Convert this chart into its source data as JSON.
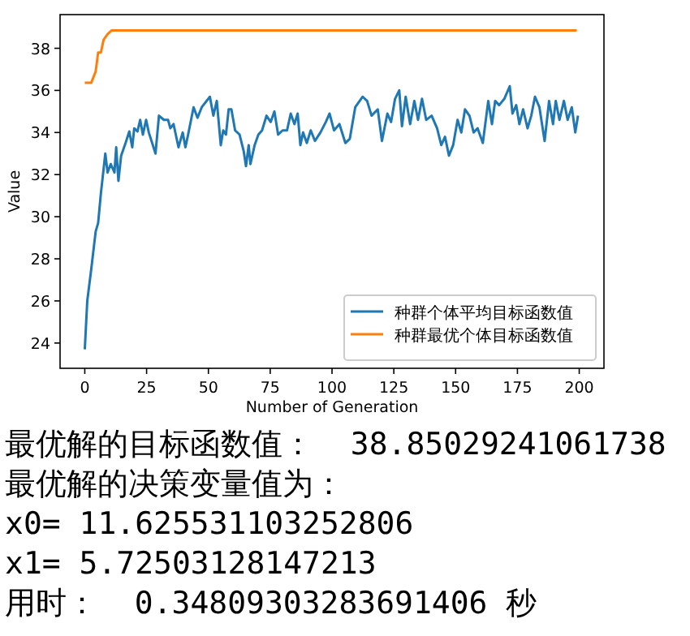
{
  "chart_data": {
    "type": "line",
    "xlabel": "Number of Generation",
    "ylabel": "Value",
    "xlim": [
      -10,
      210
    ],
    "ylim": [
      22.8,
      39.6
    ],
    "xticks": [
      0,
      25,
      50,
      75,
      100,
      125,
      150,
      175,
      200
    ],
    "yticks": [
      24,
      26,
      28,
      30,
      32,
      34,
      36,
      38
    ],
    "grid": false,
    "legend": "bottom right",
    "marker": "none",
    "line_style": "solid",
    "series": [
      {
        "name": "种群个体平均目标函数值",
        "color": "#1f77b4",
        "x": [
          0,
          1,
          2.6,
          4.4,
          5.4,
          6.5,
          8.3,
          9.2,
          10.5,
          12,
          12.7,
          13.6,
          14.7,
          16.5,
          18,
          19.2,
          20,
          21.3,
          22.4,
          23.5,
          24.8,
          25.9,
          28.6,
          30,
          32,
          33.7,
          34.6,
          35.9,
          37.9,
          39.6,
          40.7,
          41.8,
          44,
          45.6,
          47.3,
          50.6,
          52,
          53.4,
          55,
          56,
          57.1,
          58.2,
          59.3,
          60.8,
          62.6,
          64.3,
          65.2,
          66.3,
          67,
          68.7,
          70.2,
          71.7,
          73.5,
          75.2,
          76.7,
          78.2,
          80,
          81.8,
          83.3,
          84.8,
          86.1,
          87.2,
          88.3,
          89.8,
          91.4,
          93.1,
          95.3,
          97.5,
          99,
          100.8,
          103,
          105.4,
          107.2,
          109.4,
          112.4,
          114.2,
          116,
          118.5,
          120.2,
          122.4,
          123.9,
          125.5,
          127.2,
          128.3,
          129.8,
          131.6,
          133.3,
          134.8,
          136.4,
          138.1,
          140.3,
          142.5,
          144.2,
          145.7,
          147.3,
          149,
          150.8,
          152.3,
          153.8,
          155.6,
          157.3,
          158.9,
          161,
          163.2,
          164.7,
          166,
          167.6,
          169.7,
          171.9,
          173,
          174.5,
          175.8,
          177.3,
          179.1,
          180.6,
          182.1,
          183.9,
          186,
          187.8,
          189.4,
          190.5,
          192,
          193.8,
          195.3,
          197,
          198.4,
          199.5
        ],
        "values": [
          23.7,
          26.0,
          27.5,
          29.3,
          29.7,
          31.1,
          33.0,
          32.1,
          32.5,
          32.1,
          33.3,
          31.7,
          32.9,
          33.5,
          34.05,
          33.3,
          34.2,
          34.05,
          34.6,
          33.9,
          34.6,
          34.0,
          33.0,
          34.8,
          34.6,
          34.6,
          34.2,
          34.4,
          33.3,
          34.0,
          33.3,
          33.9,
          35.2,
          34.7,
          35.2,
          35.7,
          34.8,
          35.5,
          33.4,
          34.1,
          33.9,
          35.1,
          35.1,
          34.1,
          33.9,
          33.1,
          32.4,
          33.4,
          32.5,
          33.4,
          33.9,
          34.1,
          34.8,
          34.5,
          35.0,
          33.9,
          34.1,
          34.1,
          34.9,
          34.4,
          34.9,
          33.4,
          34.0,
          33.5,
          34.1,
          33.6,
          34.0,
          34.5,
          34.9,
          34.1,
          34.4,
          33.5,
          33.7,
          35.2,
          35.7,
          35.5,
          34.8,
          35.1,
          33.6,
          34.9,
          34.5,
          35.6,
          36.0,
          34.3,
          35.7,
          34.4,
          35.5,
          34.6,
          35.6,
          34.6,
          34.8,
          34.2,
          33.4,
          33.8,
          32.9,
          33.4,
          34.6,
          34.0,
          35.1,
          34.8,
          34.0,
          34.2,
          33.5,
          35.5,
          34.4,
          35.5,
          35.3,
          35.6,
          36.2,
          34.9,
          35.3,
          34.4,
          35.1,
          34.2,
          34.8,
          35.7,
          35.2,
          33.6,
          35.5,
          34.4,
          35.5,
          34.6,
          35.5,
          34.6,
          35.2,
          34.0,
          34.8
        ]
      },
      {
        "name": "种群最优个体目标函数值",
        "color": "#ff7f0e",
        "x": [
          0,
          2.6,
          4.4,
          5.4,
          6.5,
          7.6,
          9.2,
          10.9,
          199
        ],
        "values": [
          36.36,
          36.36,
          36.9,
          37.8,
          37.8,
          38.4,
          38.67,
          38.85,
          38.85
        ]
      }
    ],
    "annotations": [
      "最优解的目标函数值：  38.85029241061738",
      "最优解的决策变量值为：",
      "x0= 11.625531103252806",
      "x1= 5.72503128147213",
      "用时：  0.34809303283691406 秒"
    ]
  }
}
